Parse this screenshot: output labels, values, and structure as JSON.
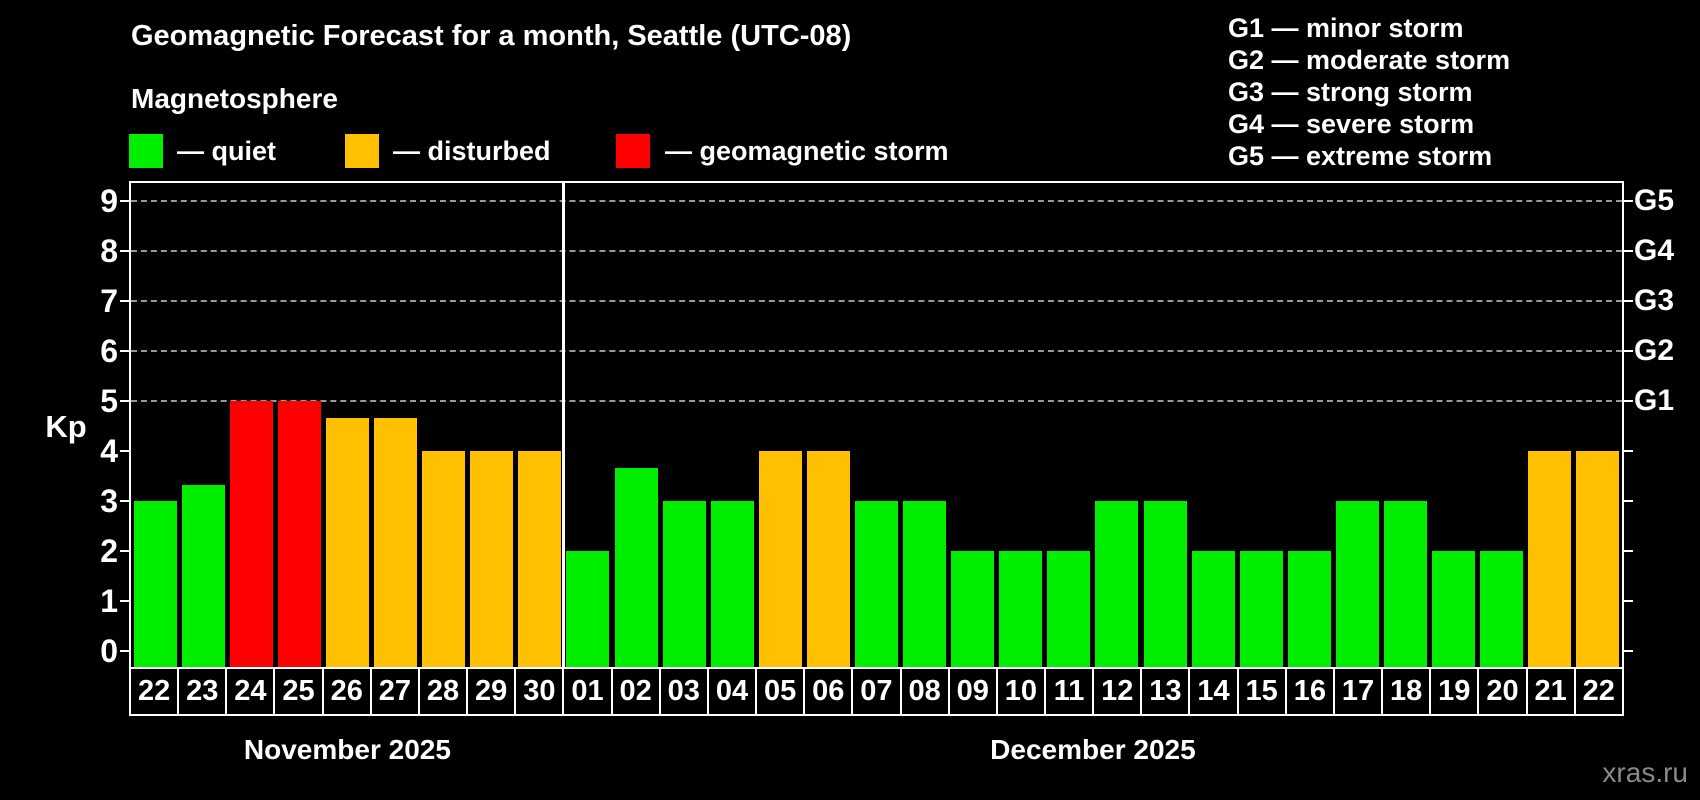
{
  "header": {
    "title": "Geomagnetic Forecast for a month, Seattle (UTC-08)",
    "subtitle": "Magnetosphere"
  },
  "legend": {
    "items": [
      {
        "key": "quiet",
        "label": "— quiet",
        "color": "#00ee00"
      },
      {
        "key": "disturbed",
        "label": "— disturbed",
        "color": "#ffc000"
      },
      {
        "key": "storm",
        "label": "— geomagnetic storm",
        "color": "#ff0000"
      }
    ]
  },
  "g_legend": {
    "lines": [
      "G1 — minor storm",
      "G2 — moderate storm",
      "G3 — strong storm",
      "G4 — severe storm",
      "G5 — extreme storm"
    ]
  },
  "watermark": "xras.ru",
  "chart_data": {
    "type": "bar",
    "title": "Geomagnetic Forecast for a month, Seattle (UTC-08)",
    "ylabel": "Kp",
    "ylim": [
      -0.32,
      9.36
    ],
    "yticks": [
      0,
      1,
      2,
      3,
      4,
      5,
      6,
      7,
      8,
      9
    ],
    "grid_levels": [
      5,
      6,
      7,
      8,
      9
    ],
    "right_axis_labels": {
      "5": "G1",
      "6": "G2",
      "7": "G3",
      "8": "G4",
      "9": "G5"
    },
    "level_colors": {
      "quiet": "#00ee00",
      "disturbed": "#ffc000",
      "storm": "#ff0000"
    },
    "months": [
      {
        "label": "November 2025"
      },
      {
        "label": "December 2025"
      }
    ],
    "points": [
      {
        "month": 0,
        "day": "22",
        "kp": 3.0,
        "level": "quiet"
      },
      {
        "month": 0,
        "day": "23",
        "kp": 3.33,
        "level": "quiet"
      },
      {
        "month": 0,
        "day": "24",
        "kp": 5.0,
        "level": "storm"
      },
      {
        "month": 0,
        "day": "25",
        "kp": 5.0,
        "level": "storm"
      },
      {
        "month": 0,
        "day": "26",
        "kp": 4.67,
        "level": "disturbed"
      },
      {
        "month": 0,
        "day": "27",
        "kp": 4.67,
        "level": "disturbed"
      },
      {
        "month": 0,
        "day": "28",
        "kp": 4.0,
        "level": "disturbed"
      },
      {
        "month": 0,
        "day": "29",
        "kp": 4.0,
        "level": "disturbed"
      },
      {
        "month": 0,
        "day": "30",
        "kp": 4.0,
        "level": "disturbed"
      },
      {
        "month": 1,
        "day": "01",
        "kp": 2.0,
        "level": "quiet"
      },
      {
        "month": 1,
        "day": "02",
        "kp": 3.67,
        "level": "quiet"
      },
      {
        "month": 1,
        "day": "03",
        "kp": 3.0,
        "level": "quiet"
      },
      {
        "month": 1,
        "day": "04",
        "kp": 3.0,
        "level": "quiet"
      },
      {
        "month": 1,
        "day": "05",
        "kp": 4.0,
        "level": "disturbed"
      },
      {
        "month": 1,
        "day": "06",
        "kp": 4.0,
        "level": "disturbed"
      },
      {
        "month": 1,
        "day": "07",
        "kp": 3.0,
        "level": "quiet"
      },
      {
        "month": 1,
        "day": "08",
        "kp": 3.0,
        "level": "quiet"
      },
      {
        "month": 1,
        "day": "09",
        "kp": 2.0,
        "level": "quiet"
      },
      {
        "month": 1,
        "day": "10",
        "kp": 2.0,
        "level": "quiet"
      },
      {
        "month": 1,
        "day": "11",
        "kp": 2.0,
        "level": "quiet"
      },
      {
        "month": 1,
        "day": "12",
        "kp": 3.0,
        "level": "quiet"
      },
      {
        "month": 1,
        "day": "13",
        "kp": 3.0,
        "level": "quiet"
      },
      {
        "month": 1,
        "day": "14",
        "kp": 2.0,
        "level": "quiet"
      },
      {
        "month": 1,
        "day": "15",
        "kp": 2.0,
        "level": "quiet"
      },
      {
        "month": 1,
        "day": "16",
        "kp": 2.0,
        "level": "quiet"
      },
      {
        "month": 1,
        "day": "17",
        "kp": 3.0,
        "level": "quiet"
      },
      {
        "month": 1,
        "day": "18",
        "kp": 3.0,
        "level": "quiet"
      },
      {
        "month": 1,
        "day": "19",
        "kp": 2.0,
        "level": "quiet"
      },
      {
        "month": 1,
        "day": "20",
        "kp": 2.0,
        "level": "quiet"
      },
      {
        "month": 1,
        "day": "21",
        "kp": 4.0,
        "level": "disturbed"
      },
      {
        "month": 1,
        "day": "22",
        "kp": 4.0,
        "level": "disturbed"
      }
    ],
    "legend_position": "top-left",
    "grid": "dashed horizontal lines at storm levels only"
  }
}
